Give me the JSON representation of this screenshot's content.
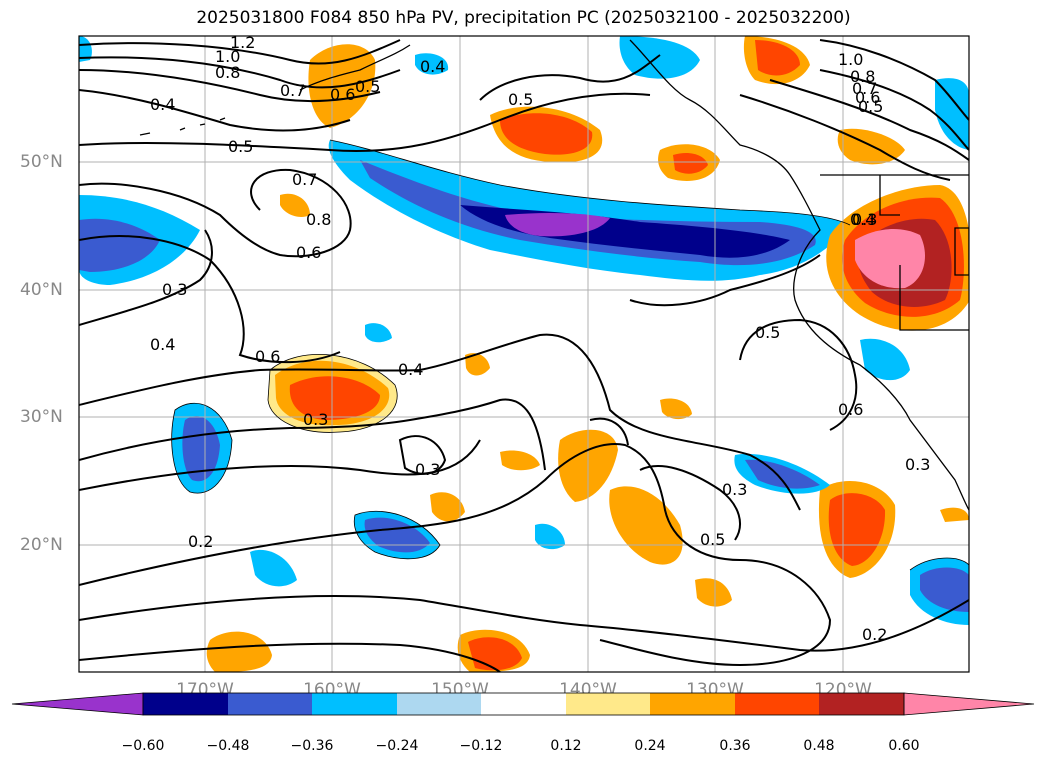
{
  "title": "2025031800 F084 850 hPa PV, precipitation PC (2025032100 - 2025032200)",
  "lat_labels": [
    "50°N",
    "40°N",
    "30°N",
    "20°N"
  ],
  "lon_labels": [
    "170°W",
    "160°W",
    "150°W",
    "140°W",
    "130°W",
    "120°W"
  ],
  "colorbar": {
    "colors": [
      "#9933cc",
      "#00008b",
      "#3a5bd0",
      "#00bfff",
      "#add8f0",
      "#ffffff",
      "#ffe98a",
      "#ffa500",
      "#ff4500",
      "#b22222",
      "#ff85a8"
    ],
    "tick_labels": [
      "−0.60",
      "−0.48",
      "−0.36",
      "−0.24",
      "−0.12",
      "0.12",
      "0.24",
      "0.36",
      "0.48",
      "0.60"
    ]
  },
  "contour_labels": [
    "1.2",
    "1.0",
    "0.8",
    "0.7",
    "0.6",
    "0.5",
    "0.4",
    "0.4",
    "0.5",
    "1.0",
    "0.8",
    "0.7",
    "0.6",
    "0.5",
    "0.4",
    "0.5",
    "0.7",
    "0.8",
    "0.6",
    "0.3",
    "0.4",
    "0.6",
    "0.4",
    "0.3",
    "0.3",
    "0.2",
    "0.5",
    "0.6",
    "0.3",
    "0.3",
    "0.5",
    "0.2",
    "0.3"
  ]
}
